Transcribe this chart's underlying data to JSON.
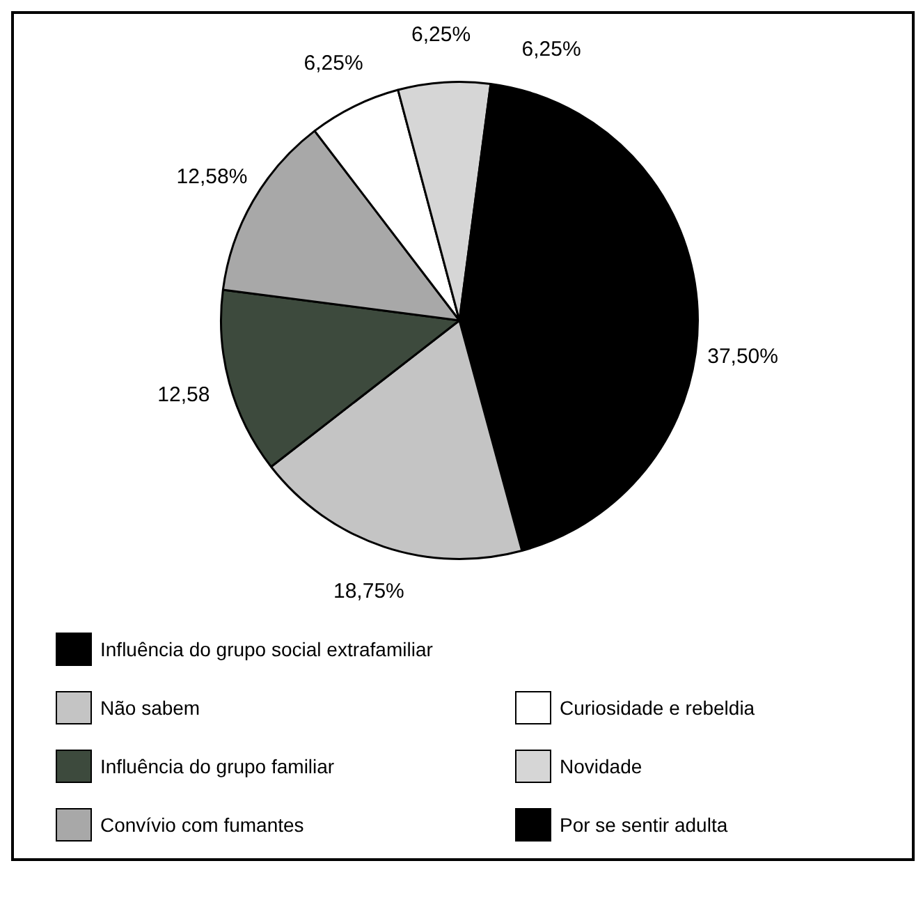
{
  "chart_data": {
    "type": "pie",
    "categories": [
      "Influência do grupo social extrafamiliar",
      "Não sabem",
      "Influência do grupo familiar",
      "Convívio com fumantes",
      "Curiosidade e rebeldia",
      "Novidade",
      "Por se sentir adulta"
    ],
    "values": [
      37.5,
      18.75,
      12.58,
      12.58,
      6.25,
      6.25,
      6.25
    ],
    "value_labels": [
      "37,50%",
      "18,75%",
      "12,58",
      "12,58%",
      "6,25%",
      "6,25%",
      "6,25%"
    ],
    "colors": [
      "#000000",
      "#c4c4c4",
      "#3d4a3d",
      "#a8a8a8",
      "#ffffff",
      "#d6d6d6",
      "#000000"
    ],
    "legend": "bottom"
  }
}
